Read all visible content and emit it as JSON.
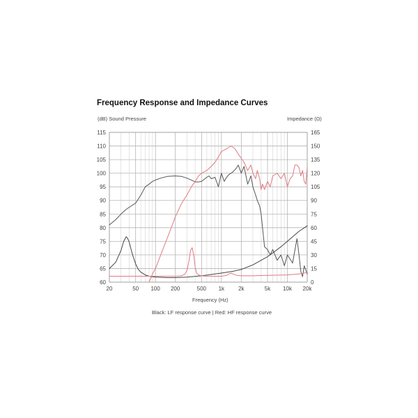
{
  "chart_data": {
    "type": "line",
    "title": "Frequency Response and Impedance Curves",
    "ylabel_left": "(dB) Sound Pressure",
    "ylabel_right": "Impedance (Ω)",
    "xlabel": "Frequency (Hz)",
    "caption": "Black: LF response curve  |  Red: HF response curve",
    "x_scale": "log",
    "xlim": [
      20,
      20000
    ],
    "ylim_left": [
      60,
      115
    ],
    "ylim_right": [
      0,
      165
    ],
    "grid": true,
    "x_ticks": [
      {
        "value": 20,
        "label": "20"
      },
      {
        "value": 50,
        "label": "50"
      },
      {
        "value": 100,
        "label": "100"
      },
      {
        "value": 200,
        "label": "200"
      },
      {
        "value": 500,
        "label": "500"
      },
      {
        "value": 1000,
        "label": "1k"
      },
      {
        "value": 2000,
        "label": "2k"
      },
      {
        "value": 5000,
        "label": "5k"
      },
      {
        "value": 10000,
        "label": "10k"
      },
      {
        "value": 20000,
        "label": "20k"
      }
    ],
    "y_left_ticks": [
      60,
      65,
      70,
      75,
      80,
      85,
      90,
      95,
      100,
      105,
      110,
      115
    ],
    "y_right_ticks": [
      0,
      15,
      30,
      45,
      60,
      75,
      90,
      105,
      120,
      135,
      150,
      165
    ],
    "series": [
      {
        "id": "lf-response",
        "axis": "left",
        "color": "#555555",
        "x": [
          20,
          25,
          30,
          35,
          40,
          50,
          60,
          70,
          80,
          90,
          100,
          120,
          150,
          200,
          250,
          300,
          350,
          400,
          450,
          500,
          600,
          650,
          700,
          800,
          900,
          1000,
          1100,
          1200,
          1300,
          1500,
          1700,
          1800,
          2000,
          2200,
          2500,
          2800,
          3000,
          3300,
          3500,
          3800,
          4000,
          4500,
          5000,
          5500,
          6000,
          7000,
          8000,
          9000,
          10000,
          12000,
          14000,
          15000,
          16000,
          17000,
          18000,
          20000
        ],
        "y": [
          81,
          83,
          85,
          86.5,
          87.5,
          89,
          92,
          95,
          96,
          97,
          97.5,
          98.2,
          98.8,
          99,
          98.8,
          98.2,
          97.5,
          96.8,
          96.8,
          97,
          98.5,
          99,
          98,
          98.5,
          95,
          100,
          97,
          98.5,
          99.5,
          100.5,
          102,
          103,
          100,
          102.5,
          96,
          99,
          95,
          92,
          90,
          88,
          85,
          73,
          72,
          70,
          72,
          68,
          70,
          66,
          70,
          67,
          76,
          70,
          64,
          62,
          66,
          63
        ]
      },
      {
        "id": "hf-response",
        "axis": "left",
        "color": "#e07a80",
        "x": [
          80,
          90,
          100,
          120,
          150,
          180,
          200,
          250,
          300,
          350,
          400,
          450,
          500,
          600,
          700,
          800,
          900,
          1000,
          1100,
          1200,
          1300,
          1400,
          1500,
          1600,
          1700,
          1800,
          2000,
          2200,
          2500,
          2800,
          3000,
          3300,
          3500,
          3800,
          4000,
          4200,
          4500,
          5000,
          5500,
          6000,
          7000,
          8000,
          9000,
          10000,
          11000,
          12000,
          13000,
          14000,
          15000,
          16000,
          17000,
          18000,
          19000,
          20000
        ],
        "y": [
          60,
          63,
          65,
          70,
          76,
          81,
          84,
          89,
          92,
          95,
          97,
          99,
          100,
          101,
          102.5,
          104,
          106,
          108,
          108.5,
          109,
          109.5,
          110,
          109.5,
          109,
          108,
          107,
          105.5,
          104,
          101,
          103,
          100,
          98,
          101,
          98,
          94,
          96,
          94,
          97,
          95,
          99,
          100,
          98,
          100,
          95,
          98,
          99,
          103,
          103,
          102,
          99,
          101,
          97,
          96,
          102
        ]
      },
      {
        "id": "lf-impedance",
        "axis": "right",
        "color": "#444444",
        "x": [
          20,
          25,
          30,
          33,
          36,
          38,
          40,
          42,
          45,
          50,
          55,
          60,
          70,
          80,
          100,
          150,
          200,
          300,
          500,
          800,
          1000,
          1500,
          2000,
          3000,
          5000,
          8000,
          10000,
          15000,
          20000
        ],
        "y": [
          15,
          22,
          35,
          45,
          50,
          48,
          44,
          38,
          30,
          20,
          14,
          11,
          8,
          6.5,
          5.5,
          5,
          5,
          5.5,
          7,
          9,
          10,
          12,
          14,
          19,
          28,
          39,
          45,
          56,
          62
        ]
      },
      {
        "id": "hf-impedance",
        "axis": "right",
        "color": "#e07a80",
        "x": [
          20,
          100,
          200,
          250,
          280,
          300,
          320,
          340,
          360,
          380,
          400,
          420,
          450,
          500,
          600,
          800,
          1000,
          1200,
          1300,
          1400,
          1500,
          1700,
          2000,
          3000,
          5000,
          10000,
          15000,
          18000,
          20000
        ],
        "y": [
          6.5,
          6.5,
          6.5,
          7,
          9,
          13,
          22,
          35,
          38,
          30,
          16,
          10,
          8,
          7,
          6.5,
          6.5,
          6.5,
          7.5,
          9,
          10,
          9,
          7.5,
          7,
          7,
          7.5,
          8,
          9,
          10,
          11
        ]
      }
    ]
  }
}
